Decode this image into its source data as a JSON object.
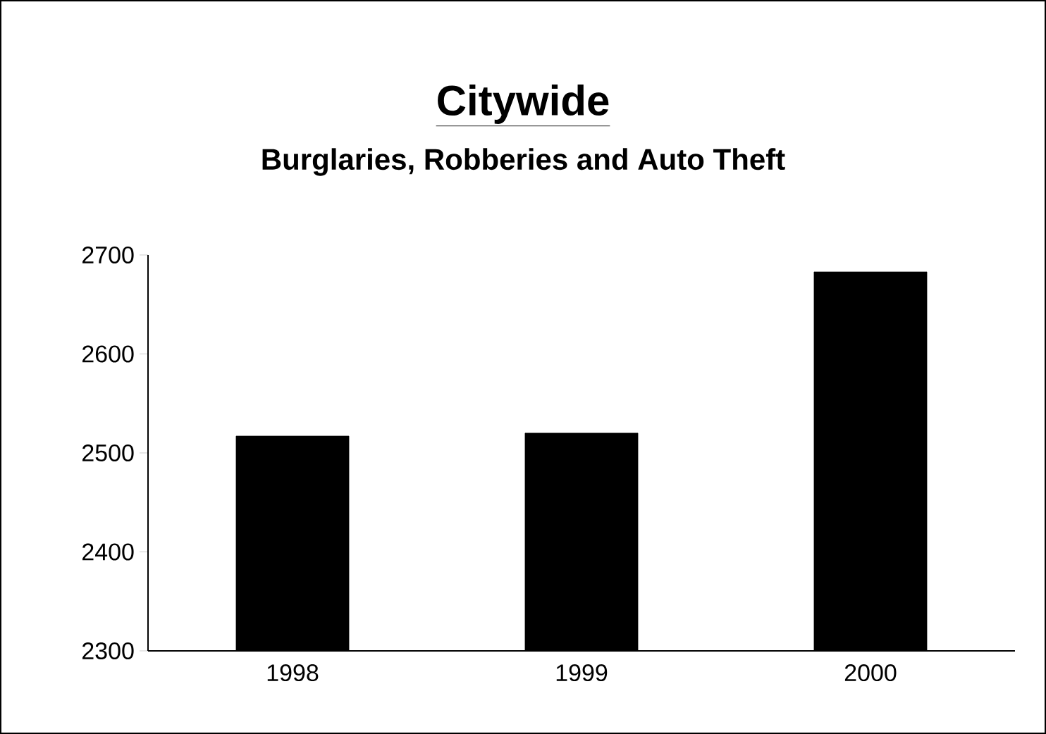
{
  "chart_data": {
    "type": "bar",
    "title": "Citywide",
    "subtitle": "Burglaries, Robberies and Auto Theft",
    "categories": [
      "1998",
      "1999",
      "2000"
    ],
    "values": [
      2517,
      2520,
      2683
    ],
    "color": "#000000",
    "ylim": [
      2300,
      2700
    ],
    "yticks": [
      2300,
      2400,
      2500,
      2600,
      2700
    ],
    "grid": false
  }
}
